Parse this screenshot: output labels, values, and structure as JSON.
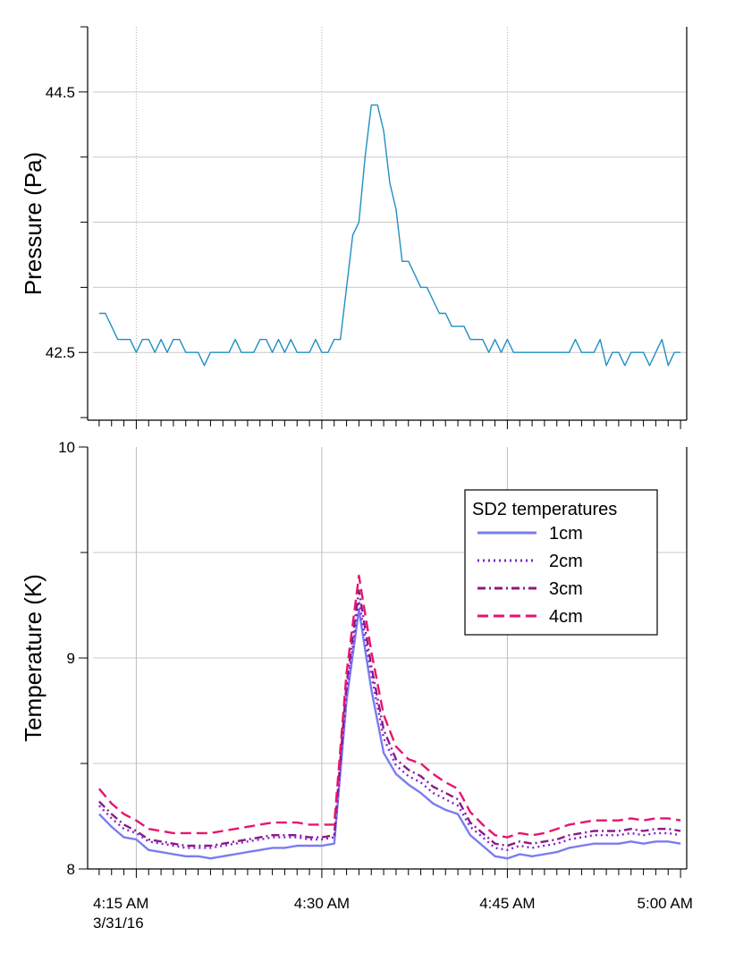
{
  "chart_data": [
    {
      "type": "line",
      "panel": "top",
      "ylabel": "Pressure (Pa)",
      "xlabel": "",
      "ylim": [
        41.98,
        45.0
      ],
      "yticks_labeled": [
        42.5,
        44.5
      ],
      "yticks_labels": [
        "42.5",
        "44.5"
      ],
      "grid": true,
      "x_minutes_range": [
        -0.5,
        47.5
      ],
      "series": [
        {
          "name": "Pressure",
          "color": "#1f8fc4",
          "x_minutes": [
            0.0,
            0.5,
            1.0,
            1.5,
            2.0,
            2.5,
            3.0,
            3.5,
            4.0,
            4.5,
            5.0,
            5.5,
            6.0,
            6.5,
            7.0,
            7.5,
            8.0,
            8.5,
            9.0,
            9.5,
            10.0,
            10.5,
            11.0,
            11.5,
            12.0,
            12.5,
            13.0,
            13.5,
            14.0,
            14.5,
            15.0,
            15.5,
            16.0,
            16.5,
            17.0,
            17.5,
            18.0,
            18.5,
            19.0,
            19.5,
            20.0,
            20.5,
            21.0,
            21.5,
            22.0,
            22.5,
            23.0,
            23.5,
            24.0,
            24.5,
            25.0,
            25.5,
            26.0,
            26.5,
            27.0,
            27.5,
            28.0,
            28.5,
            29.0,
            29.5,
            30.0,
            30.5,
            31.0,
            31.5,
            32.0,
            32.5,
            33.0,
            33.5,
            34.0,
            34.5,
            35.0,
            35.5,
            36.0,
            36.5,
            37.0,
            37.5,
            38.0,
            38.5,
            39.0,
            39.5,
            40.0,
            40.5,
            41.0,
            41.5,
            42.0,
            42.5,
            43.0,
            43.5,
            44.0,
            44.5,
            45.0,
            45.5,
            46.0,
            46.5,
            47.0
          ],
          "values": [
            42.8,
            42.8,
            42.7,
            42.6,
            42.6,
            42.6,
            42.5,
            42.6,
            42.6,
            42.5,
            42.6,
            42.5,
            42.6,
            42.6,
            42.5,
            42.5,
            42.5,
            42.4,
            42.5,
            42.5,
            42.5,
            42.5,
            42.6,
            42.5,
            42.5,
            42.5,
            42.6,
            42.6,
            42.5,
            42.6,
            42.5,
            42.6,
            42.5,
            42.5,
            42.5,
            42.6,
            42.5,
            42.5,
            42.6,
            42.6,
            43.0,
            43.4,
            43.5,
            44.0,
            44.4,
            44.4,
            44.2,
            43.8,
            43.6,
            43.2,
            43.2,
            43.1,
            43.0,
            43.0,
            42.9,
            42.8,
            42.8,
            42.7,
            42.7,
            42.7,
            42.6,
            42.6,
            42.6,
            42.5,
            42.6,
            42.5,
            42.6,
            42.5,
            42.5,
            42.5,
            42.5,
            42.5,
            42.5,
            42.5,
            42.5,
            42.5,
            42.5,
            42.6,
            42.5,
            42.5,
            42.5,
            42.6,
            42.4,
            42.5,
            42.5,
            42.4,
            42.5,
            42.5,
            42.5,
            42.4,
            42.5,
            42.6,
            42.4,
            42.5,
            42.5
          ]
        }
      ]
    },
    {
      "type": "line",
      "panel": "bottom",
      "ylabel": "Temperature (K)",
      "xlabel": "",
      "ylim": [
        8.0,
        10.0
      ],
      "yticks_labeled": [
        8,
        9,
        10
      ],
      "yticks_labels": [
        "8",
        "9",
        "10"
      ],
      "grid": true,
      "x_minutes_range": [
        -0.5,
        47.5
      ],
      "xticks_labels": [
        "4:15 AM",
        "4:30 AM",
        "4:45 AM",
        "5:00 AM"
      ],
      "xticks_minutes": [
        3,
        18,
        33,
        48
      ],
      "date_label": "3/31/16",
      "legend_title": "SD2 temperatures",
      "legend_position": "upper-right",
      "series": [
        {
          "name": "1cm",
          "color": "#7b7bf2",
          "dash": "solid",
          "x_minutes": [
            0,
            1,
            2,
            3,
            4,
            5,
            6,
            7,
            8,
            9,
            10,
            11,
            12,
            13,
            14,
            15,
            16,
            17,
            18,
            19,
            20,
            21,
            22,
            23,
            24,
            25,
            26,
            27,
            28,
            29,
            30,
            31,
            32,
            33,
            34,
            35,
            36,
            37,
            38,
            39,
            40,
            41,
            42,
            43,
            44,
            45,
            46,
            47
          ],
          "values": [
            8.26,
            8.2,
            8.15,
            8.14,
            8.09,
            8.08,
            8.07,
            8.06,
            8.06,
            8.05,
            8.06,
            8.07,
            8.08,
            8.09,
            8.1,
            8.1,
            8.11,
            8.11,
            8.11,
            8.12,
            8.8,
            9.23,
            8.85,
            8.55,
            8.45,
            8.4,
            8.36,
            8.31,
            8.28,
            8.26,
            8.16,
            8.11,
            8.06,
            8.05,
            8.07,
            8.06,
            8.07,
            8.08,
            8.1,
            8.11,
            8.12,
            8.12,
            8.12,
            8.13,
            8.12,
            8.13,
            8.13,
            8.12
          ]
        },
        {
          "name": "2cm",
          "color": "#8020d8",
          "dash": "dot",
          "x_minutes": [
            0,
            1,
            2,
            3,
            4,
            5,
            6,
            7,
            8,
            9,
            10,
            11,
            12,
            13,
            14,
            15,
            16,
            17,
            18,
            19,
            20,
            21,
            22,
            23,
            24,
            25,
            26,
            27,
            28,
            29,
            30,
            31,
            32,
            33,
            34,
            35,
            36,
            37,
            38,
            39,
            40,
            41,
            42,
            43,
            44,
            45,
            46,
            47
          ],
          "values": [
            8.3,
            8.24,
            8.19,
            8.17,
            8.13,
            8.12,
            8.11,
            8.1,
            8.1,
            8.1,
            8.11,
            8.12,
            8.13,
            8.14,
            8.15,
            8.15,
            8.15,
            8.14,
            8.14,
            8.15,
            8.84,
            9.27,
            8.92,
            8.62,
            8.49,
            8.44,
            8.41,
            8.36,
            8.33,
            8.3,
            8.2,
            8.15,
            8.1,
            8.09,
            8.11,
            8.1,
            8.11,
            8.12,
            8.14,
            8.15,
            8.16,
            8.16,
            8.16,
            8.17,
            8.16,
            8.17,
            8.17,
            8.16
          ]
        },
        {
          "name": "3cm",
          "color": "#8b1a88",
          "dash": "dashdot",
          "x_minutes": [
            0,
            1,
            2,
            3,
            4,
            5,
            6,
            7,
            8,
            9,
            10,
            11,
            12,
            13,
            14,
            15,
            16,
            17,
            18,
            19,
            20,
            21,
            22,
            23,
            24,
            25,
            26,
            27,
            28,
            29,
            30,
            31,
            32,
            33,
            34,
            35,
            36,
            37,
            38,
            39,
            40,
            41,
            42,
            43,
            44,
            45,
            46,
            47
          ],
          "values": [
            8.32,
            8.26,
            8.21,
            8.18,
            8.14,
            8.13,
            8.12,
            8.11,
            8.11,
            8.11,
            8.12,
            8.13,
            8.14,
            8.15,
            8.16,
            8.16,
            8.16,
            8.15,
            8.15,
            8.16,
            8.88,
            9.32,
            8.96,
            8.66,
            8.52,
            8.47,
            8.44,
            8.39,
            8.36,
            8.33,
            8.22,
            8.17,
            8.12,
            8.11,
            8.13,
            8.12,
            8.13,
            8.14,
            8.16,
            8.17,
            8.18,
            8.18,
            8.18,
            8.19,
            8.18,
            8.19,
            8.19,
            8.18
          ]
        },
        {
          "name": "4cm",
          "color": "#e8146e",
          "dash": "dash",
          "x_minutes": [
            0,
            1,
            2,
            3,
            4,
            5,
            6,
            7,
            8,
            9,
            10,
            11,
            12,
            13,
            14,
            15,
            16,
            17,
            18,
            19,
            20,
            21,
            22,
            23,
            24,
            25,
            26,
            27,
            28,
            29,
            30,
            31,
            32,
            33,
            34,
            35,
            36,
            37,
            38,
            39,
            40,
            41,
            42,
            43,
            44,
            45,
            46,
            47
          ],
          "values": [
            8.38,
            8.31,
            8.26,
            8.23,
            8.19,
            8.18,
            8.17,
            8.17,
            8.17,
            8.17,
            8.18,
            8.19,
            8.2,
            8.21,
            8.22,
            8.22,
            8.22,
            8.21,
            8.21,
            8.21,
            8.93,
            9.39,
            9.03,
            8.73,
            8.58,
            8.52,
            8.5,
            8.45,
            8.41,
            8.38,
            8.27,
            8.21,
            8.16,
            8.15,
            8.17,
            8.16,
            8.17,
            8.19,
            8.21,
            8.22,
            8.23,
            8.23,
            8.23,
            8.24,
            8.23,
            8.24,
            8.24,
            8.23
          ]
        }
      ]
    }
  ]
}
